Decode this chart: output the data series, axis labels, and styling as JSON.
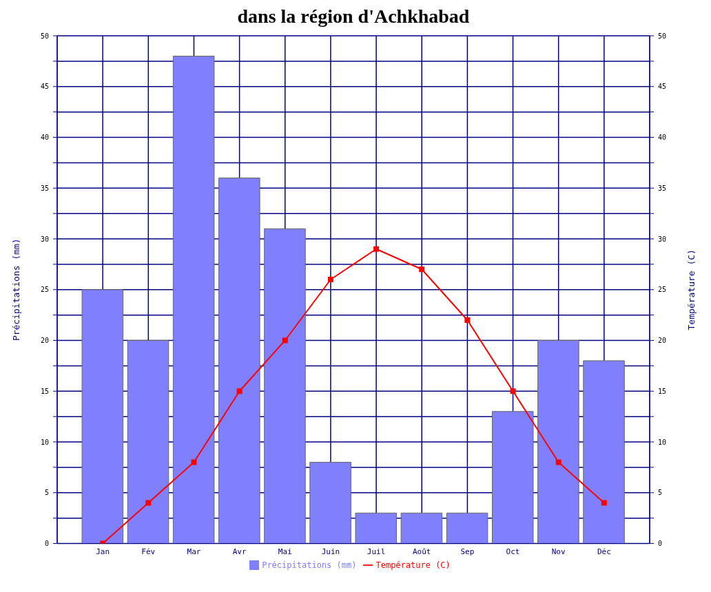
{
  "chart_data": {
    "type": "bar",
    "title": "dans la région d'Achkhabad",
    "ylabel": "Précipitations (mm)",
    "y2label": "Température (C)",
    "categories": [
      "Jan",
      "Fév",
      "Mar",
      "Avr",
      "Mai",
      "Juin",
      "Juil",
      "Août",
      "Sep",
      "Oct",
      "Nov",
      "Déc"
    ],
    "series": [
      {
        "name": "Précipitations (mm)",
        "color": "#8080ff",
        "values": [
          25,
          20,
          48,
          36,
          31,
          8,
          3,
          3,
          3,
          13,
          20,
          18
        ]
      },
      {
        "name": "Température (C)",
        "type": "line",
        "axis": "y2",
        "color": "#ff0000",
        "marker": "square",
        "values": [
          0,
          4,
          8,
          15,
          20,
          26,
          29,
          27,
          22,
          15,
          8,
          4
        ]
      }
    ],
    "ylim": [
      0,
      50
    ],
    "yticks": [
      0,
      {
        "value": 2.5,
        "label": null
      },
      5,
      {
        "value": 7.5,
        "label": null
      },
      10,
      {
        "value": 12.5,
        "label": null
      },
      15,
      {
        "value": 17.5,
        "label": null
      },
      20,
      {
        "value": 22.5,
        "label": null
      },
      25,
      {
        "value": 27.5,
        "label": null
      },
      30,
      {
        "value": 32.5,
        "label": null
      },
      35,
      {
        "value": 37.5,
        "label": null
      },
      40,
      {
        "value": 42.5,
        "label": null
      },
      45,
      {
        "value": 47.5,
        "label": null
      },
      50
    ],
    "y2lim": [
      0,
      50
    ],
    "y2ticks": [
      0,
      {
        "value": 2.5,
        "label": null
      },
      5,
      {
        "value": 7.5,
        "label": null
      },
      10,
      {
        "value": 12.5,
        "label": null
      },
      15,
      {
        "value": 17.5,
        "label": null
      },
      20,
      {
        "value": 22.5,
        "label": null
      },
      25,
      {
        "value": 27.5,
        "label": null
      },
      30,
      {
        "value": 32.5,
        "label": null
      },
      35,
      {
        "value": 37.5,
        "label": null
      },
      40,
      {
        "value": 42.5,
        "label": null
      },
      45,
      {
        "value": 47.5,
        "label": null
      },
      50
    ],
    "grid": true,
    "legend": "bottom"
  }
}
